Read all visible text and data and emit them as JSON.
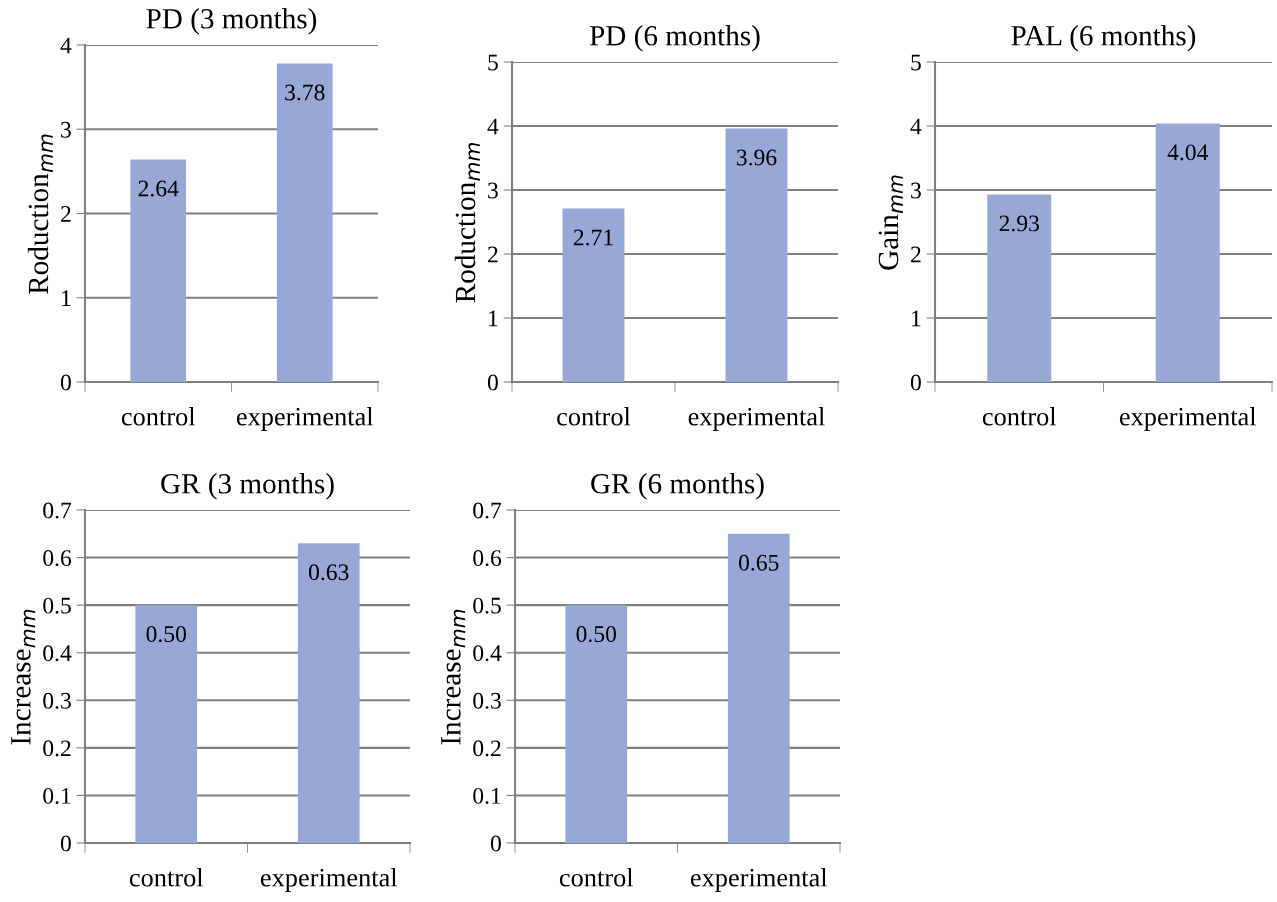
{
  "chart_data": [
    {
      "type": "bar",
      "title": "PD (3 months)",
      "ylabel": "Roduction$_{mm}$",
      "categories": [
        "control",
        "experimental"
      ],
      "values": [
        2.64,
        3.78
      ],
      "value_labels": [
        "2.64",
        "3.78"
      ],
      "color": "#97a8d6",
      "ylim": [
        0,
        4
      ],
      "yticks": [
        0,
        1,
        2,
        3,
        4
      ],
      "grid": "y"
    },
    {
      "type": "bar",
      "title": "PD (6 months)",
      "ylabel": "Roduction$_{mm}$",
      "categories": [
        "control",
        "experimental"
      ],
      "values": [
        2.71,
        3.96
      ],
      "value_labels": [
        "2.71",
        "3.96"
      ],
      "color": "#97a8d6",
      "ylim": [
        0,
        5
      ],
      "yticks": [
        0,
        1,
        2,
        3,
        4,
        5
      ],
      "grid": "y"
    },
    {
      "type": "bar",
      "title": "PAL (6 months)",
      "ylabel": "Gain$_{mm}$",
      "categories": [
        "control",
        "experimental"
      ],
      "values": [
        2.93,
        4.04
      ],
      "value_labels": [
        "2.93",
        "4.04"
      ],
      "color": "#97a8d6",
      "ylim": [
        0,
        5
      ],
      "yticks": [
        0,
        1,
        2,
        3,
        4,
        5
      ],
      "grid": "y"
    },
    {
      "type": "bar",
      "title": "GR (3 months)",
      "ylabel": "Increase$_{mm}$",
      "categories": [
        "control",
        "experimental"
      ],
      "values": [
        0.5,
        0.63
      ],
      "value_labels": [
        "0.50",
        "0.63"
      ],
      "color": "#97a8d6",
      "ylim": [
        0,
        0.7
      ],
      "yticks": [
        0,
        0.1,
        0.2,
        0.3,
        0.4,
        0.5,
        0.6,
        0.7
      ],
      "grid": "y"
    },
    {
      "type": "bar",
      "title": "GR (6 months)",
      "ylabel": "Increase$_{mm}$",
      "categories": [
        "control",
        "experimental"
      ],
      "values": [
        0.5,
        0.65
      ],
      "value_labels": [
        "0.50",
        "0.65"
      ],
      "color": "#97a8d6",
      "ylim": [
        0,
        0.7
      ],
      "yticks": [
        0,
        0.1,
        0.2,
        0.3,
        0.4,
        0.5,
        0.6,
        0.7
      ],
      "grid": "y"
    }
  ]
}
